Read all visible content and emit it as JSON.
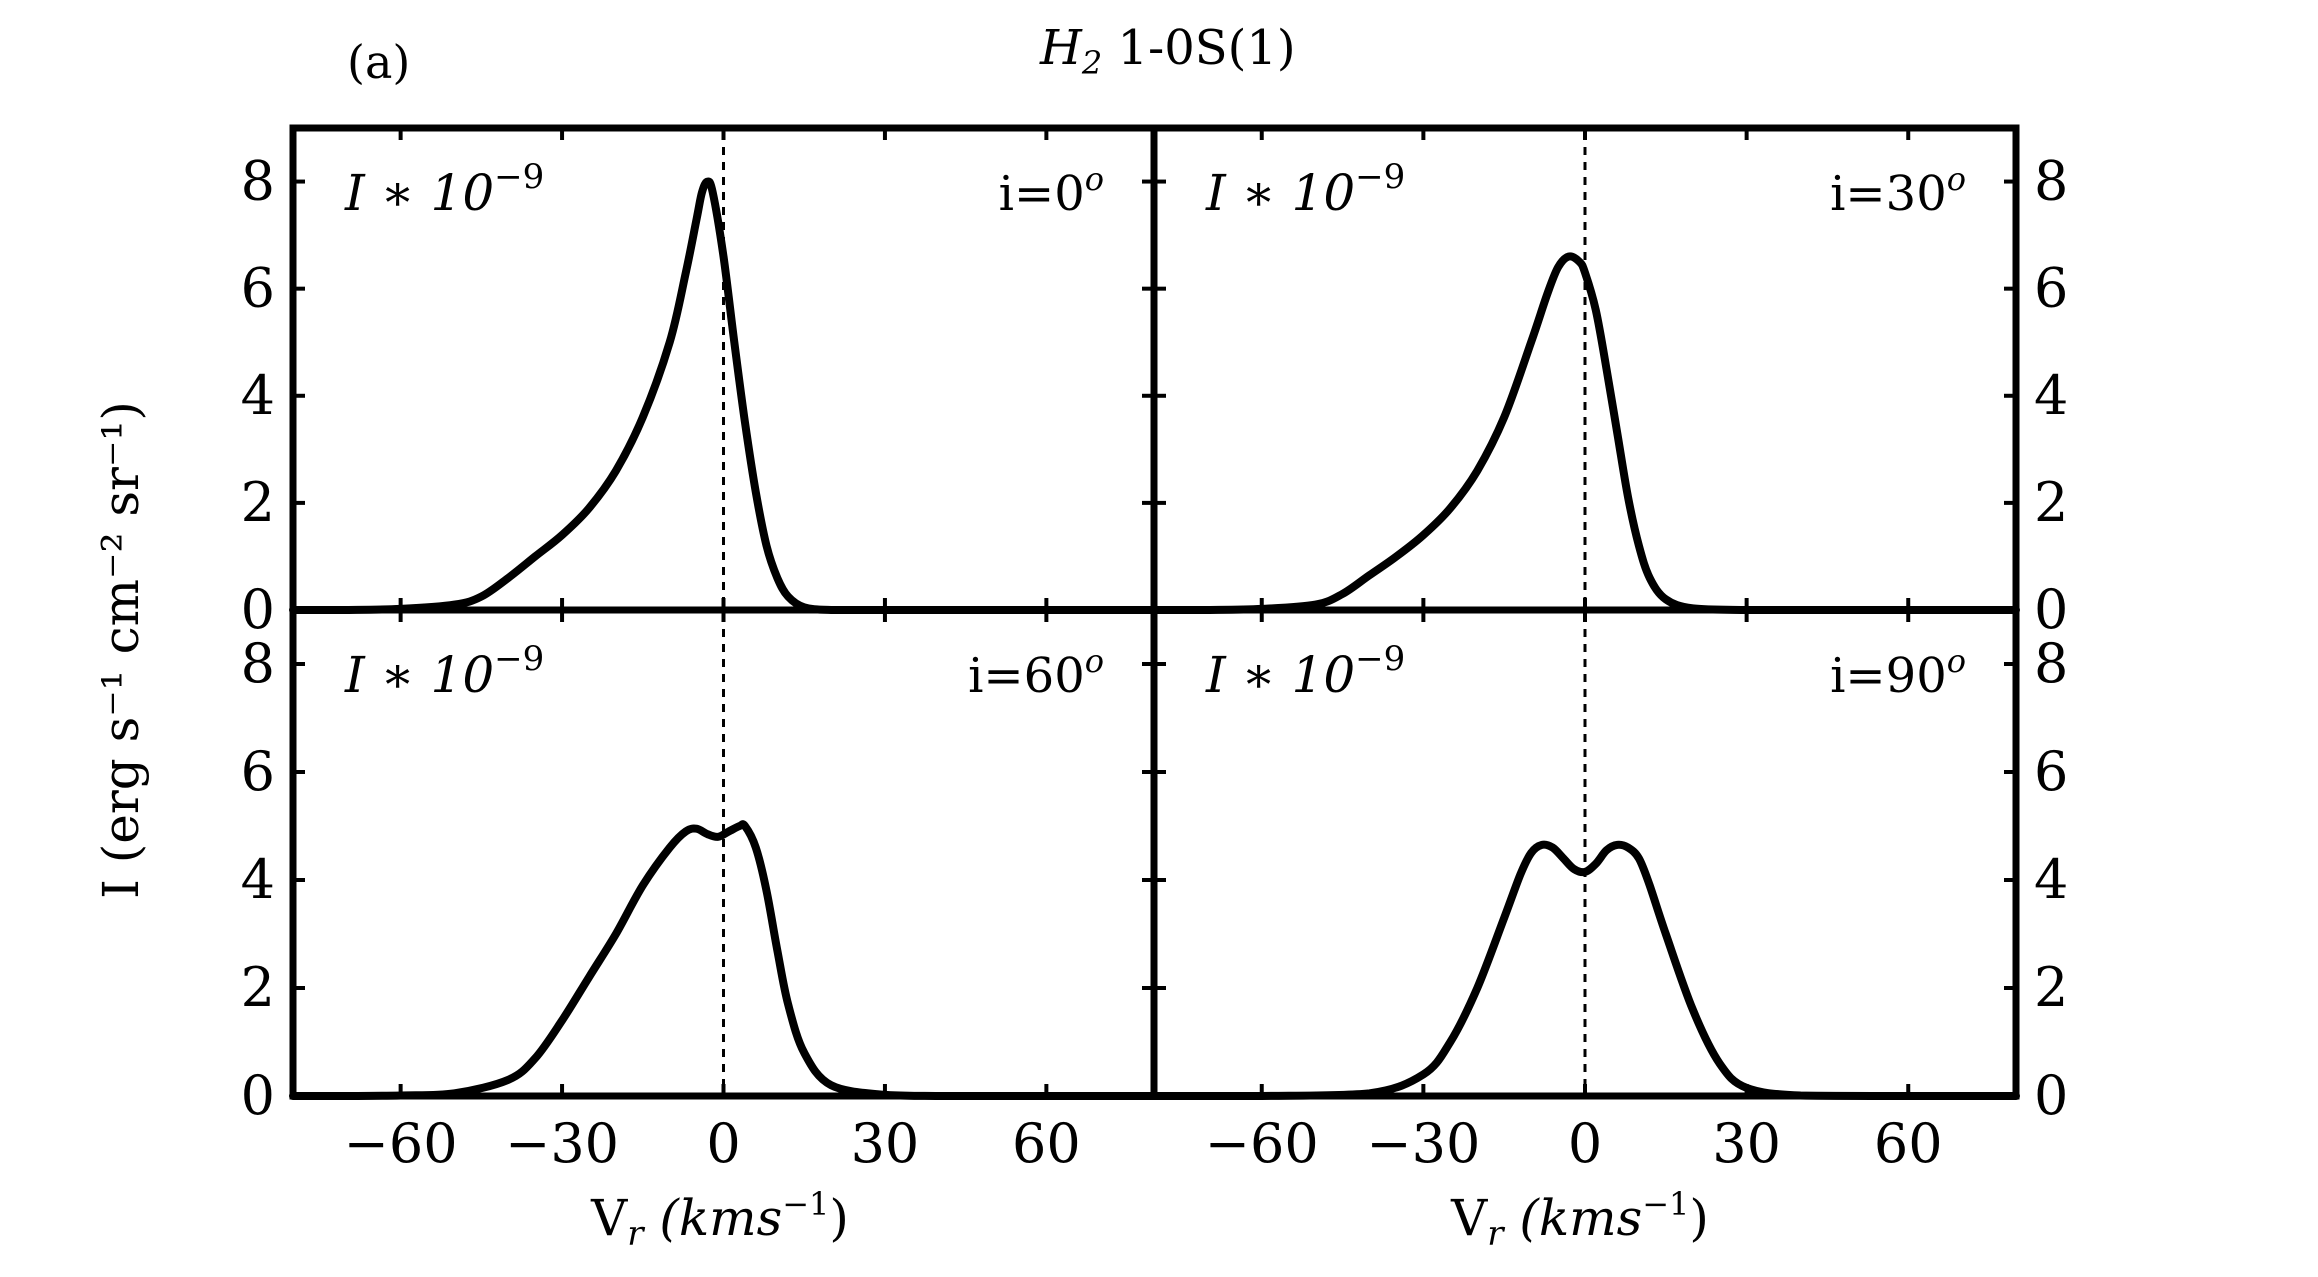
{
  "figure": {
    "panel_label": "(a)",
    "title_main": "H",
    "title_sub": "2",
    "title_rest": " 1-0S(1)",
    "ylabel_main": "I (erg s",
    "ylabel_full": "I (erg s⁻¹ cm⁻² sr⁻¹)",
    "xlabel": "V",
    "xlabel_sub": "r",
    "xlabel_unit": " (kms",
    "xlabel_unit_sup": "−1",
    "xlabel_close": ")",
    "scale_note": "I ∗ 10",
    "scale_note_sup": "−9",
    "colors": {
      "line": "#000000",
      "background": "#ffffff"
    }
  },
  "chart_data": [
    {
      "type": "line",
      "panel": "top-left",
      "inclination_label": "i=0",
      "inclination_sup": "o",
      "xlim": [
        -80,
        80
      ],
      "ylim": [
        0,
        9
      ],
      "xticks": [
        "−60",
        "−30",
        "0",
        "30",
        "60"
      ],
      "yticks": [
        "0",
        "2",
        "4",
        "6",
        "8"
      ],
      "x": [
        -80,
        -70,
        -60,
        -50,
        -45,
        -40,
        -35,
        -30,
        -25,
        -20,
        -15,
        -10,
        -7,
        -5,
        -4,
        -3,
        -2,
        0,
        2,
        4,
        6,
        8,
        10,
        12,
        15,
        20,
        30,
        40,
        60,
        80
      ],
      "y": [
        0,
        0,
        0.02,
        0.1,
        0.25,
        0.6,
        1.0,
        1.4,
        1.9,
        2.6,
        3.6,
        5.0,
        6.3,
        7.3,
        7.8,
        8.0,
        7.8,
        6.6,
        5.0,
        3.5,
        2.2,
        1.2,
        0.6,
        0.25,
        0.05,
        0,
        0,
        0,
        0,
        0
      ],
      "zero_line_x": 0
    },
    {
      "type": "line",
      "panel": "top-right",
      "inclination_label": "i=30",
      "inclination_sup": "o",
      "xlim": [
        -80,
        80
      ],
      "ylim": [
        0,
        9
      ],
      "xticks": [
        "−60",
        "−30",
        "0",
        "30",
        "60"
      ],
      "yticks": [
        "0",
        "2",
        "4",
        "6",
        "8"
      ],
      "x": [
        -80,
        -70,
        -60,
        -50,
        -45,
        -40,
        -35,
        -30,
        -25,
        -20,
        -15,
        -10,
        -7,
        -5,
        -3,
        -1,
        0,
        2,
        4,
        6,
        8,
        10,
        12,
        15,
        20,
        30,
        40,
        60,
        80
      ],
      "y": [
        0,
        0,
        0.02,
        0.1,
        0.3,
        0.65,
        1.0,
        1.4,
        1.9,
        2.6,
        3.6,
        5.0,
        5.9,
        6.4,
        6.6,
        6.5,
        6.3,
        5.6,
        4.5,
        3.3,
        2.1,
        1.2,
        0.6,
        0.2,
        0.03,
        0,
        0,
        0,
        0
      ],
      "zero_line_x": 0
    },
    {
      "type": "line",
      "panel": "bottom-left",
      "inclination_label": "i=60",
      "inclination_sup": "o",
      "xlim": [
        -80,
        80
      ],
      "ylim": [
        0,
        9
      ],
      "xticks": [
        "−60",
        "−30",
        "0",
        "30",
        "60"
      ],
      "yticks": [
        "0",
        "2",
        "4",
        "6",
        "8"
      ],
      "x": [
        -80,
        -70,
        -60,
        -50,
        -40,
        -35,
        -30,
        -25,
        -20,
        -15,
        -10,
        -7,
        -5,
        -3,
        -1,
        1,
        3,
        4,
        6,
        8,
        10,
        12,
        15,
        20,
        30,
        40,
        60,
        80
      ],
      "y": [
        0,
        0,
        0.01,
        0.05,
        0.3,
        0.7,
        1.4,
        2.2,
        3.0,
        3.9,
        4.6,
        4.9,
        4.95,
        4.85,
        4.8,
        4.9,
        5.0,
        5.0,
        4.6,
        3.8,
        2.7,
        1.7,
        0.8,
        0.2,
        0.02,
        0,
        0,
        0
      ],
      "zero_line_x": 0
    },
    {
      "type": "line",
      "panel": "bottom-right",
      "inclination_label": "i=90",
      "inclination_sup": "o",
      "xlim": [
        -80,
        80
      ],
      "ylim": [
        0,
        9
      ],
      "xticks": [
        "−60",
        "−30",
        "0",
        "30",
        "60"
      ],
      "yticks": [
        "0",
        "2",
        "4",
        "6",
        "8"
      ],
      "x": [
        -80,
        -60,
        -40,
        -30,
        -25,
        -20,
        -15,
        -12,
        -10,
        -8,
        -6,
        -4,
        -2,
        0,
        2,
        4,
        6,
        8,
        10,
        12,
        15,
        20,
        25,
        30,
        40,
        60,
        80
      ],
      "y": [
        0,
        0,
        0.05,
        0.4,
        1.0,
        2.0,
        3.3,
        4.1,
        4.5,
        4.65,
        4.6,
        4.4,
        4.2,
        4.15,
        4.3,
        4.55,
        4.65,
        4.6,
        4.4,
        3.9,
        3.0,
        1.6,
        0.6,
        0.15,
        0.01,
        0,
        0
      ],
      "zero_line_x": 0
    }
  ]
}
